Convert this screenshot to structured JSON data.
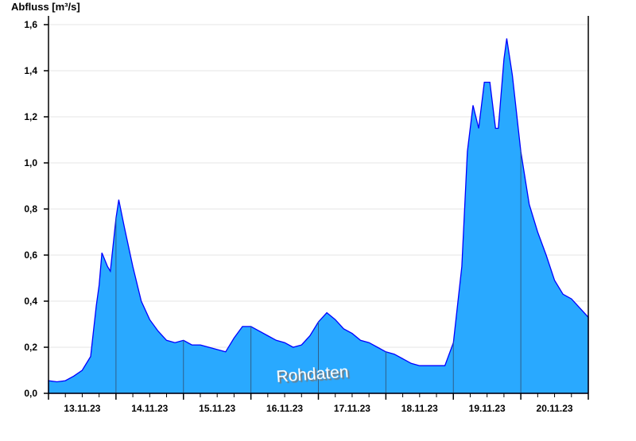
{
  "chart_data": {
    "type": "area",
    "ylabel": "Abfluss [m³/s]",
    "xlabel": "",
    "annotation": "Rohdaten",
    "ylim": [
      0,
      1.6
    ],
    "yticks": [
      "0,0",
      "0,2",
      "0,4",
      "0,6",
      "0,8",
      "1,0",
      "1,2",
      "1,4",
      "1,6"
    ],
    "xlim": [
      "13.11.23 00:00",
      "21.11.23 00:00"
    ],
    "xtick_labels": [
      "13.11.23",
      "14.11.23",
      "15.11.23",
      "16.11.23",
      "17.11.23",
      "18.11.23",
      "19.11.23",
      "20.11.23"
    ],
    "grid": true,
    "colors": {
      "fill": "#29a9ff",
      "line": "#0000ff",
      "day_separator": "#2f5f8a",
      "grid": "#e6e6e6"
    },
    "points": [
      [
        "13.11.23 00:00",
        0.055
      ],
      [
        "13.11.23 03:00",
        0.05
      ],
      [
        "13.11.23 06:00",
        0.055
      ],
      [
        "13.11.23 09:00",
        0.075
      ],
      [
        "13.11.23 12:00",
        0.1
      ],
      [
        "13.11.23 15:00",
        0.16
      ],
      [
        "13.11.23 17:00",
        0.38
      ],
      [
        "13.11.23 18:00",
        0.47
      ],
      [
        "13.11.23 19:00",
        0.61
      ],
      [
        "13.11.23 21:00",
        0.55
      ],
      [
        "13.11.23 22:00",
        0.53
      ],
      [
        "14.11.23 00:00",
        0.76
      ],
      [
        "14.11.23 01:00",
        0.84
      ],
      [
        "14.11.23 03:00",
        0.72
      ],
      [
        "14.11.23 06:00",
        0.55
      ],
      [
        "14.11.23 09:00",
        0.4
      ],
      [
        "14.11.23 12:00",
        0.32
      ],
      [
        "14.11.23 15:00",
        0.27
      ],
      [
        "14.11.23 18:00",
        0.23
      ],
      [
        "14.11.23 21:00",
        0.22
      ],
      [
        "15.11.23 00:00",
        0.23
      ],
      [
        "15.11.23 03:00",
        0.21
      ],
      [
        "15.11.23 06:00",
        0.21
      ],
      [
        "15.11.23 09:00",
        0.2
      ],
      [
        "15.11.23 12:00",
        0.19
      ],
      [
        "15.11.23 15:00",
        0.18
      ],
      [
        "15.11.23 18:00",
        0.24
      ],
      [
        "15.11.23 21:00",
        0.29
      ],
      [
        "16.11.23 00:00",
        0.29
      ],
      [
        "16.11.23 03:00",
        0.27
      ],
      [
        "16.11.23 06:00",
        0.25
      ],
      [
        "16.11.23 09:00",
        0.23
      ],
      [
        "16.11.23 12:00",
        0.22
      ],
      [
        "16.11.23 15:00",
        0.2
      ],
      [
        "16.11.23 18:00",
        0.21
      ],
      [
        "16.11.23 21:00",
        0.25
      ],
      [
        "17.11.23 00:00",
        0.31
      ],
      [
        "17.11.23 03:00",
        0.35
      ],
      [
        "17.11.23 06:00",
        0.32
      ],
      [
        "17.11.23 09:00",
        0.28
      ],
      [
        "17.11.23 12:00",
        0.26
      ],
      [
        "17.11.23 15:00",
        0.23
      ],
      [
        "17.11.23 18:00",
        0.22
      ],
      [
        "17.11.23 21:00",
        0.2
      ],
      [
        "18.11.23 00:00",
        0.18
      ],
      [
        "18.11.23 03:00",
        0.17
      ],
      [
        "18.11.23 06:00",
        0.15
      ],
      [
        "18.11.23 09:00",
        0.13
      ],
      [
        "18.11.23 12:00",
        0.12
      ],
      [
        "18.11.23 15:00",
        0.12
      ],
      [
        "18.11.23 18:00",
        0.12
      ],
      [
        "18.11.23 21:00",
        0.12
      ],
      [
        "19.11.23 00:00",
        0.22
      ],
      [
        "19.11.23 03:00",
        0.55
      ],
      [
        "19.11.23 05:00",
        1.05
      ],
      [
        "19.11.23 07:00",
        1.25
      ],
      [
        "19.11.23 09:00",
        1.15
      ],
      [
        "19.11.23 11:00",
        1.35
      ],
      [
        "19.11.23 13:00",
        1.35
      ],
      [
        "19.11.23 15:00",
        1.15
      ],
      [
        "19.11.23 16:00",
        1.15
      ],
      [
        "19.11.23 18:00",
        1.45
      ],
      [
        "19.11.23 19:00",
        1.54
      ],
      [
        "19.11.23 21:00",
        1.38
      ],
      [
        "20.11.23 00:00",
        1.05
      ],
      [
        "20.11.23 03:00",
        0.82
      ],
      [
        "20.11.23 06:00",
        0.7
      ],
      [
        "20.11.23 09:00",
        0.6
      ],
      [
        "20.11.23 12:00",
        0.49
      ],
      [
        "20.11.23 15:00",
        0.43
      ],
      [
        "20.11.23 18:00",
        0.41
      ],
      [
        "20.11.23 21:00",
        0.37
      ],
      [
        "21.11.23 00:00",
        0.33
      ]
    ]
  }
}
